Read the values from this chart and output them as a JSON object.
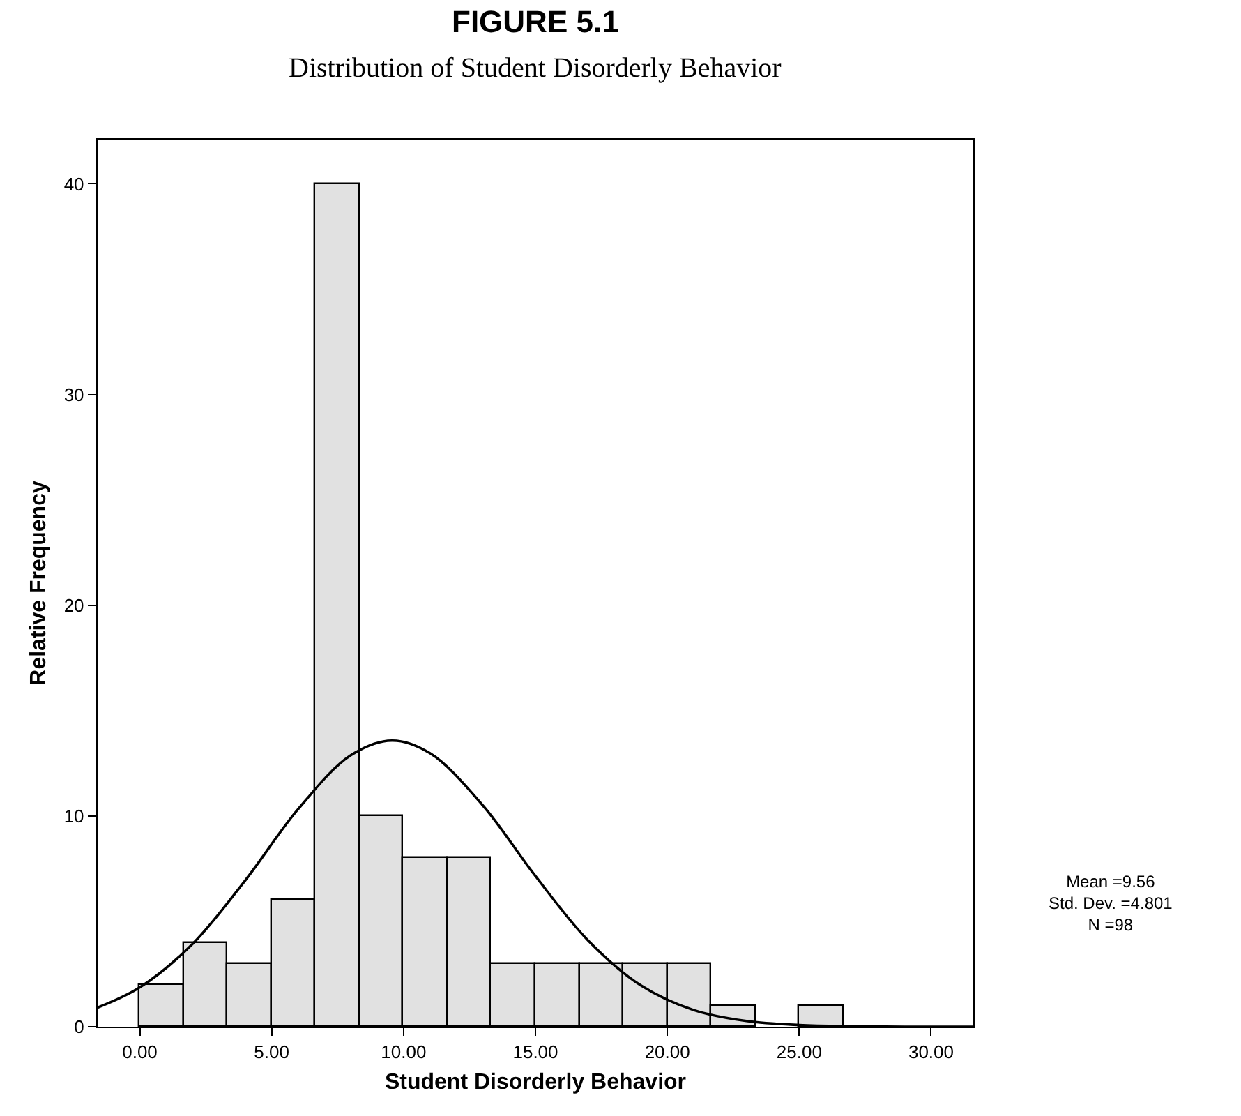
{
  "chart_data": {
    "type": "histogram",
    "title": "FIGURE 5.1",
    "subtitle": "Distribution of Student Disorderly Behavior",
    "xlabel": "Student Disorderly Behavior",
    "ylabel": "Relative Frequency",
    "annotations": [
      "Mean =9.56\nStd. Dev. =4.801\nN =98"
    ],
    "series": [
      {
        "color": "#e1e1e1",
        "bins": [
          0,
          1.667,
          3.333,
          5,
          6.667,
          8.333,
          10,
          11.667,
          13.333,
          15,
          16.667,
          18.333,
          20,
          21.667,
          23.333,
          25,
          26.667
        ],
        "values": [
          2,
          4,
          3,
          6,
          40,
          10,
          8,
          8,
          3,
          3,
          3,
          3,
          3,
          1,
          0,
          1
        ]
      },
      {
        "type": "line",
        "color": "#000000",
        "x": [
          -1.6,
          0,
          2,
          4,
          6,
          8,
          9.56,
          11,
          13,
          15,
          17,
          19,
          21,
          23,
          25,
          27,
          29,
          31.6
        ],
        "values": [
          0.91,
          1.87,
          3.93,
          6.95,
          10.32,
          12.88,
          13.58,
          12.98,
          10.51,
          7.15,
          4.09,
          1.96,
          0.79,
          0.27,
          0.08,
          0.02,
          0.0,
          0.0
        ]
      }
    ],
    "xlim": [
      -1.6,
      31.6
    ],
    "ylim": [
      0,
      42.1
    ],
    "xticks": [
      {
        "value": 0,
        "label": "0.00"
      },
      {
        "value": 5,
        "label": "5.00"
      },
      {
        "value": 10,
        "label": "10.00"
      },
      {
        "value": 15,
        "label": "15.00"
      },
      {
        "value": 20,
        "label": "20.00"
      },
      {
        "value": 25,
        "label": "25.00"
      },
      {
        "value": 30,
        "label": "30.00"
      }
    ],
    "yticks": [
      0,
      10,
      20,
      30,
      40
    ],
    "marker": "none",
    "line_style": "solid"
  }
}
